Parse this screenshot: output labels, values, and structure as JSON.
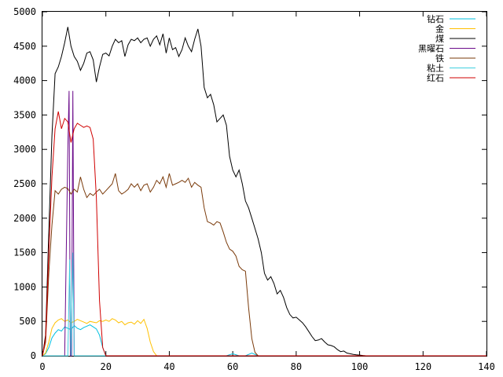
{
  "chart_data": {
    "type": "line",
    "xlim": [
      0,
      140
    ],
    "ylim": [
      0,
      5000
    ],
    "x_ticks": [
      "0",
      "20",
      "40",
      "60",
      "80",
      "100",
      "120",
      "140"
    ],
    "y_ticks": [
      "0",
      "500",
      "1000",
      "1500",
      "2000",
      "2500",
      "3000",
      "3500",
      "4000",
      "4500",
      "5000"
    ],
    "grid": false,
    "legend_position": "top-right",
    "series": [
      {
        "name": "钻石",
        "color": "#00c0e0",
        "points": [
          [
            0,
            0
          ],
          [
            1,
            30
          ],
          [
            2,
            120
          ],
          [
            3,
            260
          ],
          [
            4,
            330
          ],
          [
            5,
            380
          ],
          [
            6,
            360
          ],
          [
            7,
            420
          ],
          [
            8,
            400
          ],
          [
            9,
            380
          ],
          [
            10,
            440
          ],
          [
            11,
            400
          ],
          [
            12,
            380
          ],
          [
            13,
            410
          ],
          [
            14,
            430
          ],
          [
            15,
            450
          ],
          [
            16,
            420
          ],
          [
            17,
            390
          ],
          [
            18,
            300
          ],
          [
            19,
            120
          ],
          [
            20,
            0
          ],
          [
            58,
            0
          ],
          [
            60,
            30
          ],
          [
            62,
            0
          ],
          [
            64,
            0
          ],
          [
            66,
            40
          ],
          [
            68,
            0
          ],
          [
            140,
            0
          ]
        ]
      },
      {
        "name": "金",
        "color": "#ffc000",
        "points": [
          [
            0,
            0
          ],
          [
            1,
            40
          ],
          [
            2,
            200
          ],
          [
            3,
            400
          ],
          [
            4,
            480
          ],
          [
            5,
            520
          ],
          [
            6,
            540
          ],
          [
            7,
            500
          ],
          [
            8,
            520
          ],
          [
            9,
            480
          ],
          [
            10,
            500
          ],
          [
            11,
            530
          ],
          [
            12,
            510
          ],
          [
            13,
            490
          ],
          [
            14,
            470
          ],
          [
            15,
            500
          ],
          [
            16,
            490
          ],
          [
            17,
            480
          ],
          [
            18,
            510
          ],
          [
            19,
            500
          ],
          [
            20,
            520
          ],
          [
            21,
            500
          ],
          [
            22,
            540
          ],
          [
            23,
            520
          ],
          [
            24,
            480
          ],
          [
            25,
            500
          ],
          [
            26,
            450
          ],
          [
            27,
            480
          ],
          [
            28,
            490
          ],
          [
            29,
            460
          ],
          [
            30,
            510
          ],
          [
            31,
            470
          ],
          [
            32,
            530
          ],
          [
            33,
            400
          ],
          [
            34,
            200
          ],
          [
            35,
            60
          ],
          [
            36,
            0
          ],
          [
            140,
            0
          ]
        ]
      },
      {
        "name": "煤",
        "color": "#000000",
        "points": [
          [
            0,
            0
          ],
          [
            1,
            300
          ],
          [
            2,
            1800
          ],
          [
            3,
            3200
          ],
          [
            4,
            4100
          ],
          [
            5,
            4200
          ],
          [
            6,
            4350
          ],
          [
            7,
            4550
          ],
          [
            8,
            4780
          ],
          [
            9,
            4500
          ],
          [
            10,
            4350
          ],
          [
            11,
            4280
          ],
          [
            12,
            4150
          ],
          [
            13,
            4250
          ],
          [
            14,
            4400
          ],
          [
            15,
            4420
          ],
          [
            16,
            4300
          ],
          [
            17,
            3980
          ],
          [
            18,
            4200
          ],
          [
            19,
            4380
          ],
          [
            20,
            4400
          ],
          [
            21,
            4360
          ],
          [
            22,
            4500
          ],
          [
            23,
            4600
          ],
          [
            24,
            4550
          ],
          [
            25,
            4580
          ],
          [
            26,
            4350
          ],
          [
            27,
            4520
          ],
          [
            28,
            4600
          ],
          [
            29,
            4580
          ],
          [
            30,
            4620
          ],
          [
            31,
            4550
          ],
          [
            32,
            4600
          ],
          [
            33,
            4620
          ],
          [
            34,
            4500
          ],
          [
            35,
            4600
          ],
          [
            36,
            4650
          ],
          [
            37,
            4520
          ],
          [
            38,
            4680
          ],
          [
            39,
            4400
          ],
          [
            40,
            4620
          ],
          [
            41,
            4450
          ],
          [
            42,
            4480
          ],
          [
            43,
            4350
          ],
          [
            44,
            4450
          ],
          [
            45,
            4620
          ],
          [
            46,
            4500
          ],
          [
            47,
            4420
          ],
          [
            48,
            4600
          ],
          [
            49,
            4750
          ],
          [
            50,
            4500
          ],
          [
            51,
            3900
          ],
          [
            52,
            3750
          ],
          [
            53,
            3800
          ],
          [
            54,
            3650
          ],
          [
            55,
            3400
          ],
          [
            56,
            3450
          ],
          [
            57,
            3500
          ],
          [
            58,
            3350
          ],
          [
            59,
            2900
          ],
          [
            60,
            2700
          ],
          [
            61,
            2600
          ],
          [
            62,
            2700
          ],
          [
            63,
            2500
          ],
          [
            64,
            2250
          ],
          [
            65,
            2150
          ],
          [
            66,
            2000
          ],
          [
            67,
            1850
          ],
          [
            68,
            1700
          ],
          [
            69,
            1500
          ],
          [
            70,
            1200
          ],
          [
            71,
            1100
          ],
          [
            72,
            1150
          ],
          [
            73,
            1050
          ],
          [
            74,
            900
          ],
          [
            75,
            950
          ],
          [
            76,
            850
          ],
          [
            77,
            700
          ],
          [
            78,
            600
          ],
          [
            79,
            550
          ],
          [
            80,
            560
          ],
          [
            81,
            520
          ],
          [
            82,
            480
          ],
          [
            83,
            420
          ],
          [
            84,
            350
          ],
          [
            85,
            280
          ],
          [
            86,
            220
          ],
          [
            87,
            230
          ],
          [
            88,
            250
          ],
          [
            89,
            200
          ],
          [
            90,
            160
          ],
          [
            91,
            150
          ],
          [
            92,
            130
          ],
          [
            93,
            90
          ],
          [
            94,
            60
          ],
          [
            95,
            70
          ],
          [
            96,
            40
          ],
          [
            97,
            30
          ],
          [
            98,
            20
          ],
          [
            99,
            15
          ],
          [
            100,
            10
          ],
          [
            101,
            5
          ],
          [
            102,
            0
          ],
          [
            140,
            0
          ]
        ]
      },
      {
        "name": "黑曜石",
        "color": "#6a0a8a",
        "points": [
          [
            0,
            0
          ],
          [
            7,
            0
          ],
          [
            8,
            3000
          ],
          [
            8.4,
            3850
          ],
          [
            8.8,
            0
          ],
          [
            9.2,
            0
          ],
          [
            9.6,
            3850
          ],
          [
            10,
            0
          ],
          [
            140,
            0
          ]
        ]
      },
      {
        "name": "铁",
        "color": "#7a3a0a",
        "points": [
          [
            0,
            0
          ],
          [
            1,
            200
          ],
          [
            2,
            1200
          ],
          [
            3,
            1900
          ],
          [
            4,
            2400
          ],
          [
            5,
            2350
          ],
          [
            6,
            2420
          ],
          [
            7,
            2450
          ],
          [
            8,
            2430
          ],
          [
            9,
            2350
          ],
          [
            10,
            2420
          ],
          [
            11,
            2380
          ],
          [
            12,
            2600
          ],
          [
            13,
            2420
          ],
          [
            14,
            2300
          ],
          [
            15,
            2360
          ],
          [
            16,
            2330
          ],
          [
            17,
            2380
          ],
          [
            18,
            2420
          ],
          [
            19,
            2350
          ],
          [
            20,
            2400
          ],
          [
            21,
            2450
          ],
          [
            22,
            2500
          ],
          [
            23,
            2650
          ],
          [
            24,
            2400
          ],
          [
            25,
            2350
          ],
          [
            26,
            2380
          ],
          [
            27,
            2420
          ],
          [
            28,
            2500
          ],
          [
            29,
            2450
          ],
          [
            30,
            2500
          ],
          [
            31,
            2400
          ],
          [
            32,
            2480
          ],
          [
            33,
            2500
          ],
          [
            34,
            2380
          ],
          [
            35,
            2450
          ],
          [
            36,
            2550
          ],
          [
            37,
            2500
          ],
          [
            38,
            2600
          ],
          [
            39,
            2450
          ],
          [
            40,
            2650
          ],
          [
            41,
            2480
          ],
          [
            42,
            2500
          ],
          [
            43,
            2520
          ],
          [
            44,
            2550
          ],
          [
            45,
            2520
          ],
          [
            46,
            2580
          ],
          [
            47,
            2450
          ],
          [
            48,
            2520
          ],
          [
            49,
            2480
          ],
          [
            50,
            2450
          ],
          [
            51,
            2150
          ],
          [
            52,
            1950
          ],
          [
            53,
            1930
          ],
          [
            54,
            1900
          ],
          [
            55,
            1950
          ],
          [
            56,
            1930
          ],
          [
            57,
            1800
          ],
          [
            58,
            1650
          ],
          [
            59,
            1550
          ],
          [
            60,
            1520
          ],
          [
            61,
            1450
          ],
          [
            62,
            1300
          ],
          [
            63,
            1250
          ],
          [
            64,
            1230
          ],
          [
            65,
            700
          ],
          [
            66,
            250
          ],
          [
            67,
            50
          ],
          [
            68,
            0
          ],
          [
            140,
            0
          ]
        ]
      },
      {
        "name": "粘土",
        "color": "#40d0e0",
        "points": [
          [
            0,
            0
          ],
          [
            8,
            0
          ],
          [
            8.6,
            1400
          ],
          [
            9,
            0
          ],
          [
            9.6,
            1500
          ],
          [
            10,
            0
          ],
          [
            140,
            0
          ]
        ]
      },
      {
        "name": "红石",
        "color": "#d00000",
        "points": [
          [
            0,
            0
          ],
          [
            1,
            250
          ],
          [
            2,
            1500
          ],
          [
            3,
            2600
          ],
          [
            4,
            3300
          ],
          [
            5,
            3550
          ],
          [
            6,
            3300
          ],
          [
            7,
            3450
          ],
          [
            8,
            3400
          ],
          [
            9,
            3100
          ],
          [
            10,
            3300
          ],
          [
            11,
            3380
          ],
          [
            12,
            3350
          ],
          [
            13,
            3320
          ],
          [
            14,
            3340
          ],
          [
            15,
            3320
          ],
          [
            16,
            3150
          ],
          [
            17,
            2300
          ],
          [
            18,
            800
          ],
          [
            19,
            120
          ],
          [
            20,
            0
          ],
          [
            140,
            0
          ]
        ]
      }
    ]
  }
}
